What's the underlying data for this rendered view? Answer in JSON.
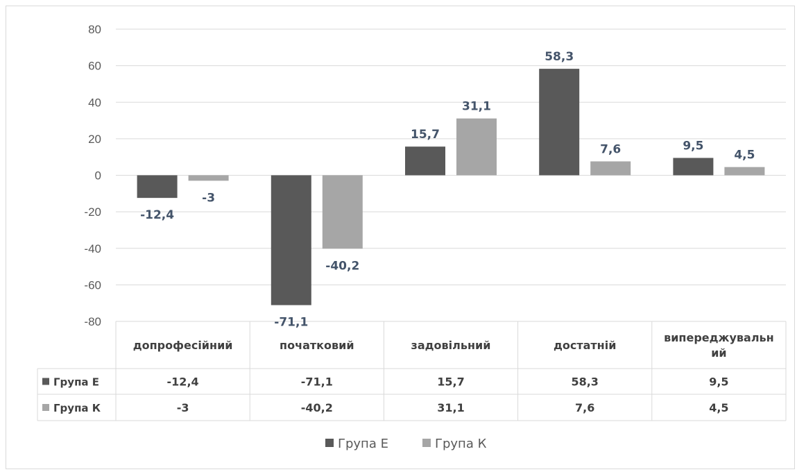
{
  "chart_data": {
    "type": "bar",
    "categories": [
      "допрофесійний",
      "початковий",
      "задовільний",
      "достатній",
      "випереджувальний"
    ],
    "category_lines": [
      [
        "допрофесійний"
      ],
      [
        "початковий"
      ],
      [
        "задовільний"
      ],
      [
        "достатній"
      ],
      [
        "випереджувальн",
        "ий"
      ]
    ],
    "series": [
      {
        "name": "Група Е",
        "values": [
          -12.4,
          -71.1,
          15.7,
          58.3,
          9.5
        ],
        "labels": [
          "-12,4",
          "-71,1",
          "15,7",
          "58,3",
          "9,5"
        ],
        "color": "#595959"
      },
      {
        "name": "Група К",
        "values": [
          -3,
          -40.2,
          31.1,
          7.6,
          4.5
        ],
        "labels": [
          "-3",
          "-40,2",
          "31,1",
          "7,6",
          "4,5"
        ],
        "color": "#a6a6a6"
      }
    ],
    "ylim": [
      -80,
      80
    ],
    "yticks": [
      80,
      60,
      40,
      20,
      0,
      -20,
      -40,
      -60,
      -80
    ],
    "grid": true,
    "data_table": true,
    "legend": "bottom"
  }
}
